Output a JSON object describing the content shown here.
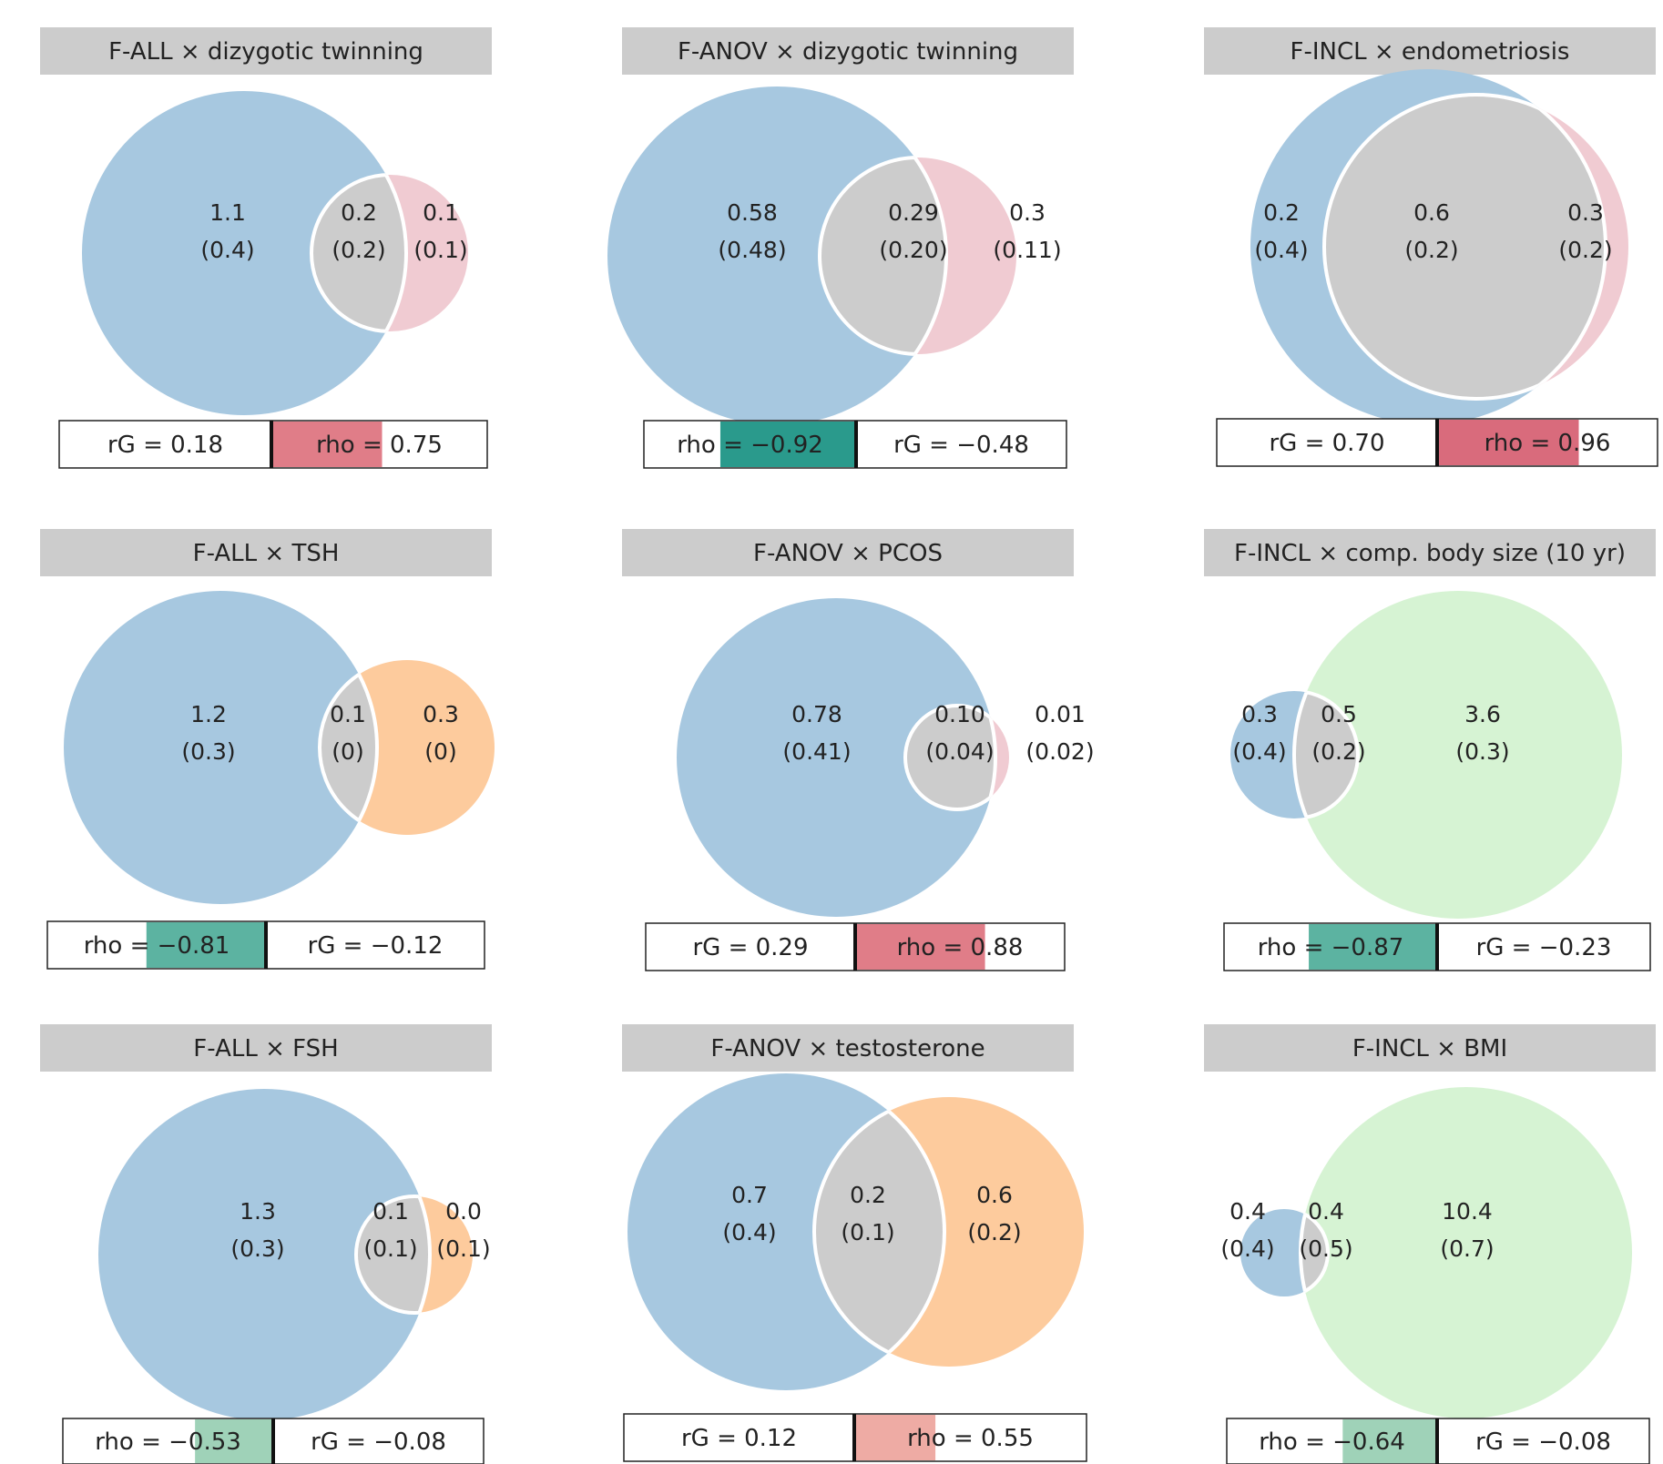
{
  "colors": {
    "blue": "#a7c8e0",
    "pink": "#f0cbd2",
    "orange": "#fdcb9d",
    "green": "#d6f3d3",
    "overlap": "#cccccc",
    "header": "#cccccc",
    "pos_strong": "#d96b7c",
    "pos_medium": "#e07d88",
    "pos_weak": "#eeaba4",
    "neg_strong": "#2a9a8c",
    "neg_medium": "#5cb3a1",
    "neg_weak": "#9fd2b8"
  },
  "chart_data": [
    {
      "type": "venn",
      "title": "F-ALL × dizygotic twinning",
      "set_colors": [
        "blue",
        "pink"
      ],
      "regions": [
        {
          "value": "1.1",
          "se": "(0.4)"
        },
        {
          "value": "0.2",
          "se": "(0.2)"
        },
        {
          "value": "0.1",
          "se": "(0.1)"
        }
      ],
      "rG": "rG = 0.18",
      "rho": "rho = 0.75",
      "rho_value": 0.75,
      "rG_value": 0.18
    },
    {
      "type": "venn",
      "title": "F-ANOV × dizygotic twinning",
      "set_colors": [
        "blue",
        "pink"
      ],
      "regions": [
        {
          "value": "0.58",
          "se": "(0.48)"
        },
        {
          "value": "0.29",
          "se": "(0.20)"
        },
        {
          "value": "0.3",
          "se": "(0.11)"
        }
      ],
      "rG": "rG = −0.48",
      "rho": "rho = −0.92",
      "rho_value": -0.92,
      "rG_value": -0.48
    },
    {
      "type": "venn",
      "title": "F-INCL × endometriosis",
      "set_colors": [
        "blue",
        "pink"
      ],
      "regions": [
        {
          "value": "0.2",
          "se": "(0.4)"
        },
        {
          "value": "0.6",
          "se": "(0.2)"
        },
        {
          "value": "0.3",
          "se": "(0.2)"
        }
      ],
      "rG": "rG = 0.70",
      "rho": "rho = 0.96",
      "rho_value": 0.96,
      "rG_value": 0.7
    },
    {
      "type": "venn",
      "title": "F-ALL × TSH",
      "set_colors": [
        "blue",
        "orange"
      ],
      "regions": [
        {
          "value": "1.2",
          "se": "(0.3)"
        },
        {
          "value": "0.1",
          "se": "(0)"
        },
        {
          "value": "0.3",
          "se": "(0)"
        }
      ],
      "rG": "rG = −0.12",
      "rho": "rho = −0.81",
      "rho_value": -0.81,
      "rG_value": -0.12
    },
    {
      "type": "venn",
      "title": "F-ANOV × PCOS",
      "set_colors": [
        "blue",
        "pink"
      ],
      "regions": [
        {
          "value": "0.78",
          "se": "(0.41)"
        },
        {
          "value": "0.10",
          "se": "(0.04)"
        },
        {
          "value": "0.01",
          "se": "(0.02)"
        }
      ],
      "rG": "rG = 0.29",
      "rho": "rho = 0.88",
      "rho_value": 0.88,
      "rG_value": 0.29
    },
    {
      "type": "venn",
      "title": "F-INCL × comp. body size (10 yr)",
      "set_colors": [
        "blue",
        "green"
      ],
      "regions": [
        {
          "value": "0.3",
          "se": "(0.4)"
        },
        {
          "value": "0.5",
          "se": "(0.2)"
        },
        {
          "value": "3.6",
          "se": "(0.3)"
        }
      ],
      "rG": "rG = −0.23",
      "rho": "rho = −0.87",
      "rho_value": -0.87,
      "rG_value": -0.23
    },
    {
      "type": "venn",
      "title": "F-ALL × FSH",
      "set_colors": [
        "blue",
        "orange"
      ],
      "regions": [
        {
          "value": "1.3",
          "se": "(0.3)"
        },
        {
          "value": "0.1",
          "se": "(0.1)"
        },
        {
          "value": "0.0",
          "se": "(0.1)"
        }
      ],
      "rG": "rG = −0.08",
      "rho": "rho = −0.53",
      "rho_value": -0.53,
      "rG_value": -0.08
    },
    {
      "type": "venn",
      "title": "F-ANOV × testosterone",
      "set_colors": [
        "blue",
        "orange"
      ],
      "regions": [
        {
          "value": "0.7",
          "se": "(0.4)"
        },
        {
          "value": "0.2",
          "se": "(0.1)"
        },
        {
          "value": "0.6",
          "se": "(0.2)"
        }
      ],
      "rG": "rG = 0.12",
      "rho": "rho = 0.55",
      "rho_value": 0.55,
      "rG_value": 0.12
    },
    {
      "type": "venn",
      "title": "F-INCL × BMI",
      "set_colors": [
        "blue",
        "green"
      ],
      "regions": [
        {
          "value": "0.4",
          "se": "(0.4)"
        },
        {
          "value": "0.4",
          "se": "(0.5)"
        },
        {
          "value": "10.4",
          "se": "(0.7)"
        }
      ],
      "rG": "rG = −0.08",
      "rho": "rho = −0.64",
      "rho_value": -0.64,
      "rG_value": -0.08
    }
  ]
}
